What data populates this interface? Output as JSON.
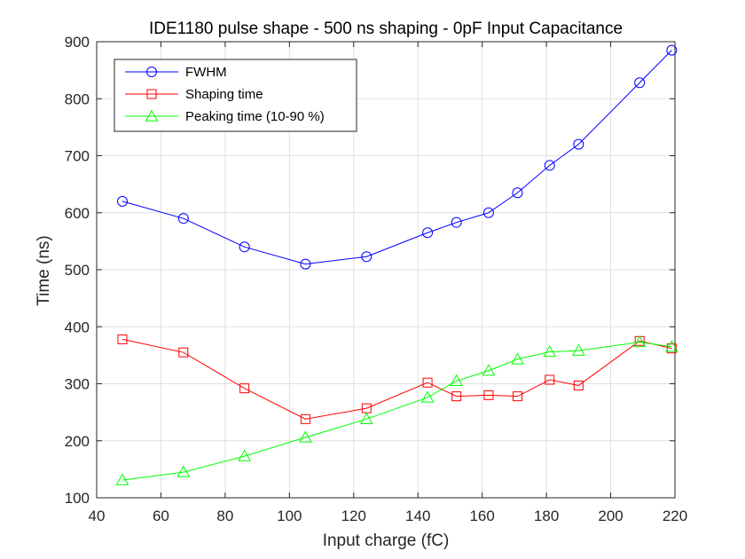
{
  "chart_data": {
    "type": "line",
    "title": "IDE1180 pulse shape - 500 ns shaping - 0pF Input Capacitance",
    "xlabel": "Input charge (fC)",
    "ylabel": "Time (ns)",
    "xlim": [
      40,
      220
    ],
    "ylim": [
      100,
      900
    ],
    "xticks": [
      "40",
      "60",
      "80",
      "100",
      "120",
      "140",
      "160",
      "180",
      "200",
      "220"
    ],
    "yticks": [
      "100",
      "200",
      "300",
      "400",
      "500",
      "600",
      "700",
      "800",
      "900"
    ],
    "grid": true,
    "legend_position": "top-left",
    "series": [
      {
        "name": "FWHM",
        "color": "#0000ff",
        "marker": "circle",
        "x": [
          48,
          67,
          86,
          105,
          124,
          143,
          152,
          162,
          171,
          181,
          190,
          209,
          219
        ],
        "y": [
          620,
          590,
          540,
          510,
          523,
          565,
          583,
          600,
          635,
          683,
          720,
          828,
          885
        ]
      },
      {
        "name": "Shaping time",
        "color": "#ff0000",
        "marker": "square",
        "x": [
          48,
          67,
          86,
          105,
          124,
          143,
          152,
          162,
          171,
          181,
          190,
          209,
          219
        ],
        "y": [
          378,
          355,
          292,
          238,
          257,
          302,
          278,
          280,
          278,
          307,
          297,
          375,
          362
        ]
      },
      {
        "name": "Peaking time (10-90 %)",
        "color": "#00ff00",
        "marker": "triangle",
        "x": [
          48,
          67,
          86,
          105,
          124,
          143,
          152,
          162,
          171,
          181,
          190,
          209,
          219
        ],
        "y": [
          131,
          145,
          173,
          206,
          238,
          276,
          305,
          323,
          343,
          356,
          358,
          373,
          365
        ]
      }
    ]
  }
}
